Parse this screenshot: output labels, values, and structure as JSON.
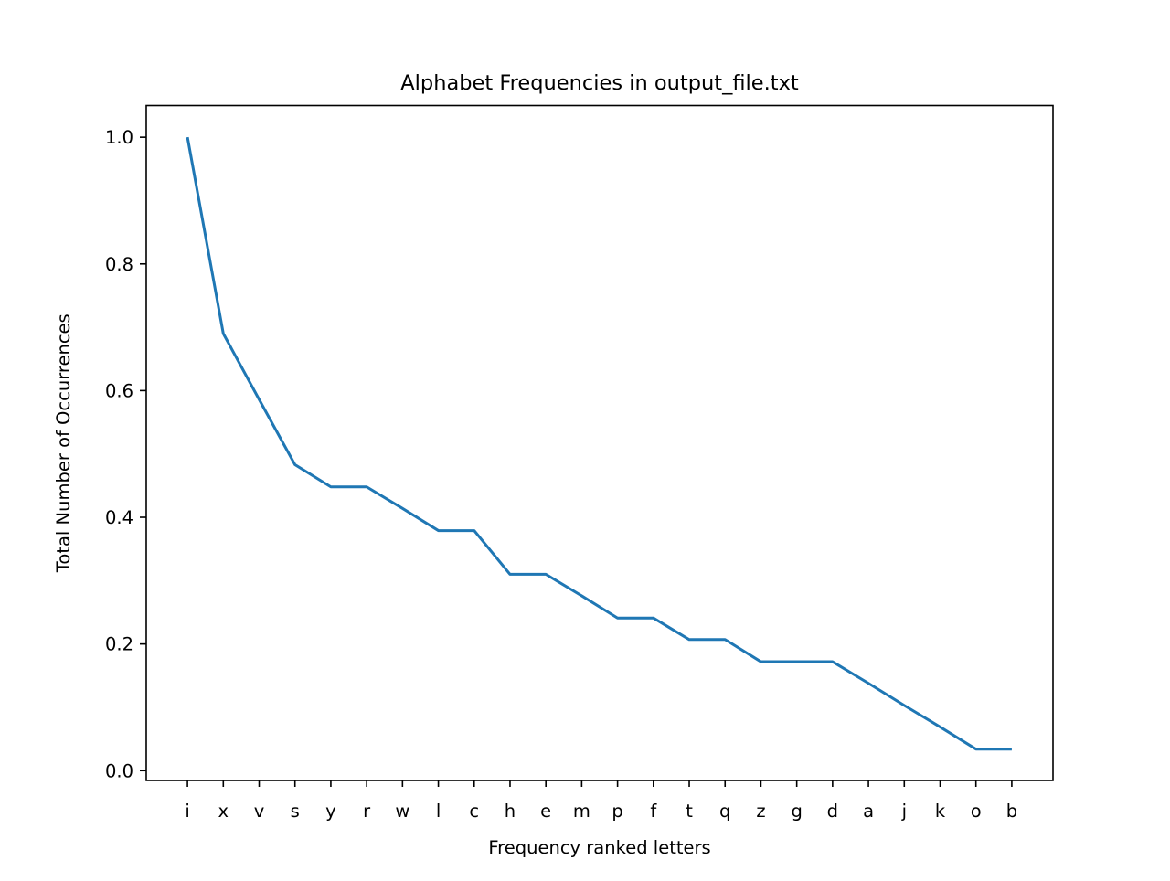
{
  "chart_data": {
    "type": "line",
    "title": "Alphabet Frequencies in output_file.txt",
    "xlabel": "Frequency ranked letters",
    "ylabel": "Total Number of Occurrences",
    "categories": [
      "i",
      "x",
      "v",
      "s",
      "y",
      "r",
      "w",
      "l",
      "c",
      "h",
      "e",
      "m",
      "p",
      "f",
      "t",
      "q",
      "z",
      "g",
      "d",
      "a",
      "j",
      "k",
      "o",
      "b"
    ],
    "series": [
      {
        "color": "#1f77b4",
        "values": [
          1.0,
          0.69,
          0.586,
          0.483,
          0.448,
          0.448,
          0.414,
          0.379,
          0.379,
          0.31,
          0.31,
          0.276,
          0.241,
          0.241,
          0.207,
          0.207,
          0.172,
          0.172,
          0.172,
          0.138,
          0.103,
          0.069,
          0.034,
          0.034
        ]
      }
    ],
    "ylim": [
      -0.0155,
      1.05
    ],
    "yticks": [
      0.0,
      0.2,
      0.4,
      0.6,
      0.8,
      1.0
    ],
    "ytick_labels": [
      "0.0",
      "0.2",
      "0.4",
      "0.6",
      "0.8",
      "1.0"
    ],
    "grid": false,
    "legend": "none"
  }
}
